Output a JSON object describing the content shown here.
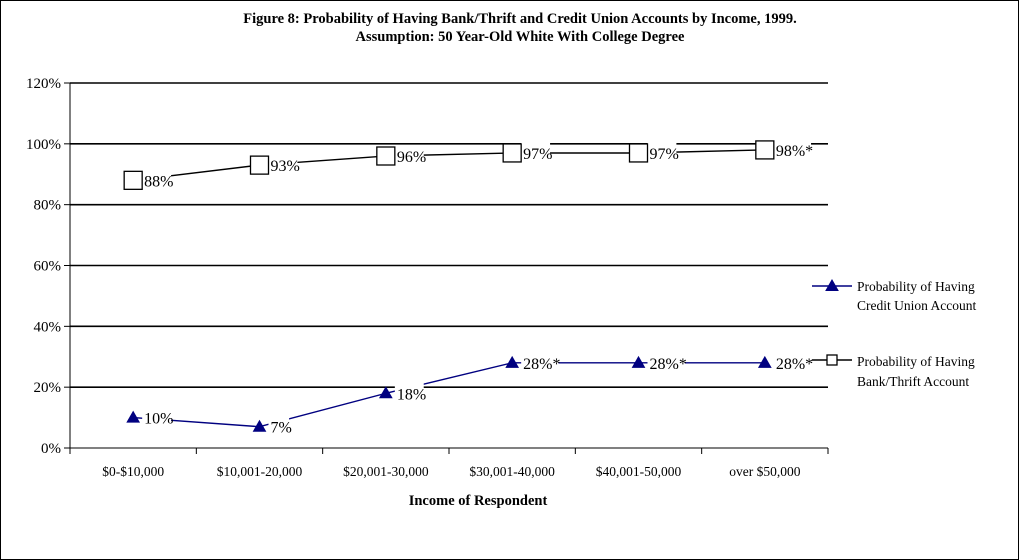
{
  "chart_data": {
    "type": "line",
    "title": "Figure 8: Probability of Having Bank/Thrift and Credit Union Accounts by Income, 1999.",
    "subtitle": "Assumption: 50 Year-Old White With College Degree",
    "xlabel": "Income of Respondent",
    "ylabel": "",
    "categories": [
      "$0-$10,000",
      "$10,001-20,000",
      "$20,001-30,000",
      "$30,001-40,000",
      "$40,001-50,000",
      "over $50,000"
    ],
    "yticks": [
      "0%",
      "20%",
      "40%",
      "60%",
      "80%",
      "100%",
      "120%"
    ],
    "ylim": [
      0,
      120
    ],
    "grid": true,
    "legend_position": "right",
    "series": [
      {
        "name": "Probability of Having Credit Union Account",
        "legend_lines": [
          "Probability of Having",
          "Credit Union Account"
        ],
        "marker": "triangle",
        "color": "#000080",
        "values": [
          10,
          7,
          18,
          28,
          28,
          28
        ],
        "labels": [
          "10%",
          "7%",
          "18%",
          "28%*",
          "28%*",
          "28%*"
        ]
      },
      {
        "name": "Probability of Having Bank/Thrift Account",
        "legend_lines": [
          "Probability of Having",
          "Bank/Thrift Account"
        ],
        "marker": "square",
        "color": "#000000",
        "values": [
          88,
          93,
          96,
          97,
          97,
          98
        ],
        "labels": [
          "88%",
          "93%",
          "96%",
          "97%",
          "97%",
          "98%*"
        ]
      }
    ]
  }
}
